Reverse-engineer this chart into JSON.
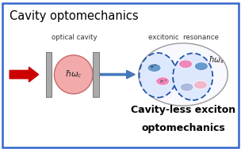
{
  "title": "Cavity optomechanics",
  "subtitle1": "Cavity-less exciton",
  "subtitle2": "optomechanics",
  "label_cavity": "optical cavity",
  "label_excitonic": "excitonic  resonance",
  "hbar_omega_c": "$\\hbar\\omega_c$",
  "hbar_omega_x": "$\\hbar\\omega_x$",
  "bg_color": "#ffffff",
  "border_color": "#3366cc",
  "title_color": "#000000",
  "subtitle_color": "#000000",
  "cavity_ellipse_fill": "#f2aaaa",
  "cavity_ellipse_edge": "#cc6666",
  "exciton_ellipse_fill": "#f8f8ff",
  "exciton_ellipse_edge": "#999999",
  "mirror_color": "#aaaaaa",
  "mirror_edge": "#777777",
  "red_arrow_color": "#cc0000",
  "blue_arrow_color": "#4477bb",
  "dashed_circle_color": "#2255aa",
  "dashed_circle_fill": "#dde8ff",
  "electron_color": "#6699cc",
  "hole_color": "#ee88bb",
  "label_color": "#333333"
}
